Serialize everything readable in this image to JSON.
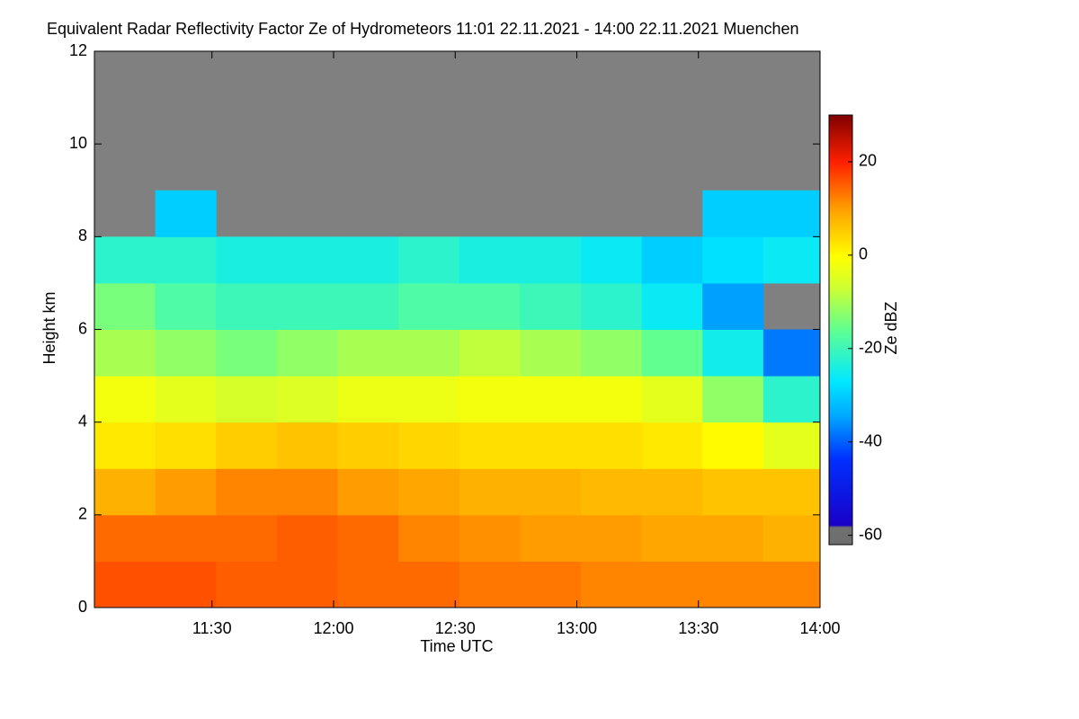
{
  "chart_data": {
    "type": "heatmap",
    "title": "Equivalent Radar Reflectivity Factor Ze of Hydrometeors   11:01 22.11.2021 - 14:00 22.11.2021 Muenchen",
    "x_label": "Time UTC",
    "y_label": "Height km",
    "colorbar_label": "Ze dBZ",
    "xlim": [
      661,
      840
    ],
    "xticks": [
      {
        "value": 690,
        "label": "11:30"
      },
      {
        "value": 720,
        "label": "12:00"
      },
      {
        "value": 750,
        "label": "12:30"
      },
      {
        "value": 780,
        "label": "13:00"
      },
      {
        "value": 810,
        "label": "13:30"
      },
      {
        "value": 840,
        "label": "14:00"
      }
    ],
    "ylim": [
      0,
      12
    ],
    "yticks": [
      0,
      2,
      4,
      6,
      8,
      10,
      12
    ],
    "clim": [
      -62,
      30
    ],
    "cticks": [
      -60,
      -40,
      -20,
      0,
      20
    ],
    "x": [
      661,
      676,
      691,
      706,
      721,
      736,
      751,
      766,
      781,
      796,
      811,
      826,
      840
    ],
    "y": [
      0,
      1,
      2,
      3,
      4,
      5,
      6,
      7,
      8,
      9,
      10,
      11,
      12
    ],
    "z": [
      [
        16,
        16,
        15,
        15,
        14,
        14,
        13,
        13,
        12,
        12,
        12,
        12
      ],
      [
        14,
        14,
        14,
        15,
        14,
        12,
        11,
        10,
        10,
        9,
        9,
        8
      ],
      [
        8,
        10,
        12,
        12,
        10,
        9,
        8,
        8,
        7,
        7,
        6,
        6
      ],
      [
        2,
        3,
        5,
        6,
        5,
        4,
        3,
        3,
        3,
        2,
        0,
        -4
      ],
      [
        -2,
        -4,
        -6,
        -5,
        -3,
        -3,
        -2,
        -2,
        -2,
        -4,
        -12,
        -22
      ],
      [
        -10,
        -12,
        -14,
        -12,
        -10,
        -10,
        -8,
        -10,
        -12,
        -16,
        -25,
        -38
      ],
      [
        -14,
        -18,
        -20,
        -20,
        -20,
        -18,
        -18,
        -20,
        -22,
        -26,
        -35,
        null
      ],
      [
        -22,
        -22,
        -24,
        -24,
        -24,
        -22,
        -24,
        -24,
        -26,
        -30,
        -28,
        -26
      ],
      [
        null,
        -30,
        null,
        null,
        null,
        null,
        null,
        null,
        null,
        null,
        -30,
        -30
      ],
      [
        null,
        null,
        null,
        null,
        null,
        null,
        null,
        null,
        null,
        null,
        null,
        null
      ],
      [
        null,
        null,
        null,
        null,
        null,
        null,
        null,
        null,
        null,
        null,
        null,
        null
      ],
      [
        null,
        null,
        null,
        null,
        null,
        null,
        null,
        null,
        null,
        null,
        null,
        null
      ]
    ]
  }
}
